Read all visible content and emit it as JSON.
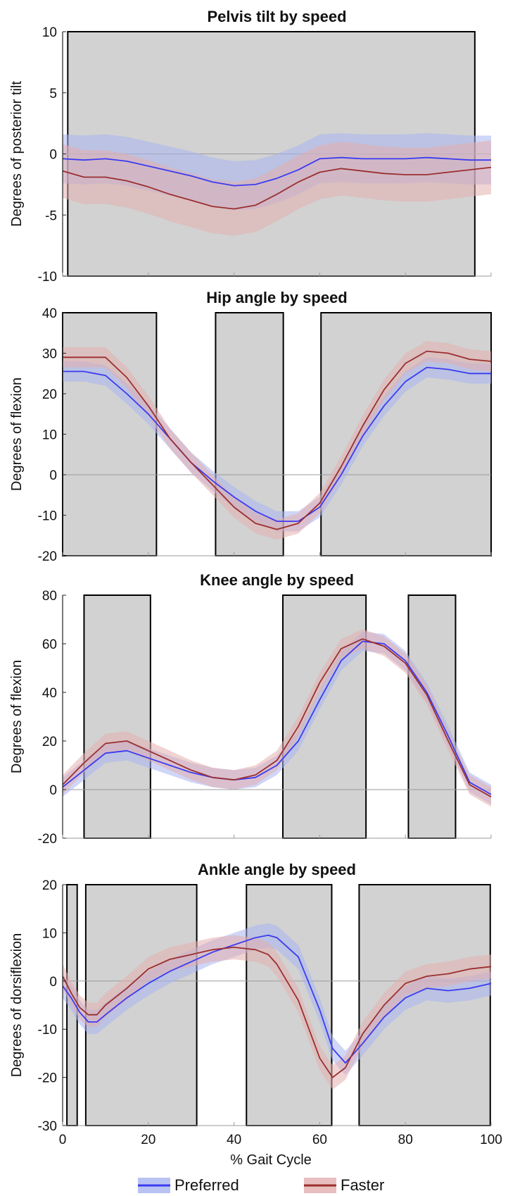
{
  "legend": {
    "items": [
      {
        "label": "Preferred",
        "color": "#3b3bf0",
        "band": "#a8b4f0"
      },
      {
        "label": "Faster",
        "color": "#9b2f2f",
        "band": "#e3aeae"
      }
    ]
  },
  "xaxis": {
    "label": "% Gait Cycle",
    "ticks": [
      "0",
      "20",
      "40",
      "60",
      "80",
      "100"
    ],
    "range": [
      0,
      100
    ]
  },
  "chart_data": [
    {
      "type": "line",
      "title": "Pelvis tilt by speed",
      "ylabel": "Degrees of posterior tilt",
      "ylim": [
        -10,
        10
      ],
      "yticks": [
        10,
        5,
        0,
        -5,
        -10
      ],
      "shaded_regions": [
        [
          1.2,
          96.2
        ]
      ],
      "x": [
        0,
        5,
        10,
        15,
        20,
        25,
        30,
        35,
        40,
        45,
        50,
        55,
        60,
        65,
        70,
        75,
        80,
        85,
        90,
        95,
        100
      ],
      "series": [
        {
          "name": "Preferred",
          "values": [
            -0.4,
            -0.5,
            -0.4,
            -0.6,
            -1.0,
            -1.4,
            -1.8,
            -2.3,
            -2.6,
            -2.5,
            -2.0,
            -1.3,
            -0.4,
            -0.3,
            -0.4,
            -0.4,
            -0.4,
            -0.3,
            -0.4,
            -0.5,
            -0.5
          ],
          "sd": [
            2.0,
            2.0,
            2.0,
            2.0,
            2.0,
            2.0,
            2.0,
            2.0,
            2.0,
            2.0,
            2.0,
            2.0,
            2.0,
            2.0,
            2.0,
            2.0,
            2.0,
            2.0,
            2.0,
            2.0,
            2.0
          ]
        },
        {
          "name": "Faster",
          "values": [
            -1.4,
            -1.9,
            -1.9,
            -2.2,
            -2.7,
            -3.3,
            -3.8,
            -4.3,
            -4.5,
            -4.2,
            -3.3,
            -2.3,
            -1.5,
            -1.2,
            -1.4,
            -1.6,
            -1.7,
            -1.7,
            -1.5,
            -1.3,
            -1.1
          ],
          "sd": [
            2.2,
            2.2,
            2.2,
            2.2,
            2.2,
            2.2,
            2.2,
            2.2,
            2.2,
            2.2,
            2.2,
            2.2,
            2.2,
            2.2,
            2.2,
            2.2,
            2.2,
            2.2,
            2.2,
            2.2,
            2.2
          ]
        }
      ]
    },
    {
      "type": "line",
      "title": "Hip angle by speed",
      "ylabel": "Degrees of flexion",
      "ylim": [
        -20,
        40
      ],
      "yticks": [
        40,
        30,
        20,
        10,
        0,
        -10,
        -20
      ],
      "shaded_regions": [
        [
          0,
          21.9
        ],
        [
          35.7,
          51.5
        ],
        [
          60.3,
          100
        ]
      ],
      "x": [
        0,
        5,
        10,
        15,
        20,
        25,
        30,
        35,
        40,
        45,
        50,
        55,
        60,
        65,
        70,
        75,
        80,
        85,
        90,
        95,
        100
      ],
      "series": [
        {
          "name": "Preferred",
          "values": [
            25.5,
            25.5,
            24.5,
            20,
            15,
            9,
            3,
            -1.5,
            -5.5,
            -9,
            -11.5,
            -11.5,
            -8,
            0,
            9.5,
            17,
            23,
            26.5,
            26,
            25,
            25
          ],
          "sd": [
            2.5,
            2.5,
            2.5,
            2.5,
            2.5,
            2.5,
            2.5,
            2.5,
            2.5,
            2.5,
            2.5,
            2.5,
            2.5,
            2.5,
            2.5,
            2.5,
            2.5,
            2.5,
            2.5,
            2.5,
            2.5
          ]
        },
        {
          "name": "Faster",
          "values": [
            29,
            29,
            29,
            24,
            17,
            9,
            3,
            -2.5,
            -8,
            -12,
            -13.5,
            -12,
            -7,
            2,
            12,
            21,
            27.5,
            30.5,
            30,
            28.5,
            28
          ],
          "sd": [
            2.5,
            2.5,
            2.5,
            2.5,
            2.5,
            2.5,
            2.5,
            2.5,
            2.5,
            2.5,
            2.5,
            2.5,
            2.5,
            2.5,
            2.5,
            2.5,
            2.5,
            2.5,
            2.5,
            2.5,
            2.5
          ]
        }
      ]
    },
    {
      "type": "line",
      "title": "Knee angle by speed",
      "ylabel": "Degrees of flexion",
      "ylim": [
        -20,
        80
      ],
      "yticks": [
        80,
        60,
        40,
        20,
        0,
        -20
      ],
      "shaded_regions": [
        [
          5,
          20.5
        ],
        [
          51.4,
          70.8
        ],
        [
          80.7,
          91.7
        ]
      ],
      "x": [
        0,
        5,
        10,
        15,
        20,
        25,
        30,
        35,
        40,
        45,
        50,
        55,
        60,
        65,
        70,
        75,
        80,
        85,
        90,
        95,
        100
      ],
      "series": [
        {
          "name": "Preferred",
          "values": [
            1,
            8,
            15,
            16,
            13,
            10,
            7,
            5,
            4,
            5,
            10,
            20,
            37,
            53,
            61,
            60,
            53,
            40,
            22,
            3,
            -2
          ],
          "sd": [
            4,
            4,
            4,
            4,
            4,
            4,
            4,
            4,
            4,
            4,
            4,
            4,
            4,
            4,
            4,
            4,
            4,
            4,
            4,
            4,
            4
          ]
        },
        {
          "name": "Faster",
          "values": [
            2,
            11,
            19,
            20,
            16,
            12,
            8,
            5,
            4,
            6,
            12,
            26,
            44,
            58,
            62,
            59,
            52,
            39,
            20,
            2,
            -3
          ],
          "sd": [
            4,
            4,
            4,
            4,
            4,
            4,
            4,
            4,
            4,
            4,
            4,
            4,
            4,
            4,
            4,
            4,
            4,
            4,
            4,
            4,
            4
          ]
        }
      ]
    },
    {
      "type": "line",
      "title": "Ankle angle by speed",
      "ylabel": "Degrees of dorsiflexion",
      "ylim": [
        -30,
        20
      ],
      "yticks": [
        20,
        10,
        0,
        -10,
        -20,
        -30
      ],
      "shaded_regions": [
        [
          1,
          3.4
        ],
        [
          5.4,
          31.3
        ],
        [
          42.9,
          62.8
        ],
        [
          69.2,
          99.8
        ]
      ],
      "x": [
        0,
        2,
        4,
        6,
        8,
        10,
        15,
        20,
        25,
        30,
        35,
        40,
        45,
        48,
        50,
        55,
        60,
        63,
        66,
        70,
        75,
        80,
        85,
        90,
        95,
        100
      ],
      "series": [
        {
          "name": "Preferred",
          "values": [
            -1,
            -3.5,
            -6.5,
            -8.5,
            -8.5,
            -7,
            -3.5,
            -0.5,
            2,
            4,
            6,
            7.5,
            9,
            9.5,
            9,
            5,
            -6,
            -14,
            -17,
            -13,
            -7.5,
            -3.5,
            -1.5,
            -2,
            -1.5,
            -0.5
          ],
          "sd": [
            2.5,
            2.5,
            2.5,
            2.5,
            2.5,
            2.5,
            2.5,
            2.5,
            2.5,
            2.5,
            2.5,
            2.5,
            2.5,
            2.5,
            2.5,
            2.5,
            2.5,
            2.5,
            2.5,
            2.5,
            2.5,
            2.5,
            2.5,
            2.5,
            2.5,
            2.5
          ]
        },
        {
          "name": "Faster",
          "values": [
            1,
            -2.5,
            -5.5,
            -7,
            -7,
            -5,
            -1.5,
            2.5,
            4.5,
            5.5,
            6.5,
            7,
            6.5,
            5.5,
            3.5,
            -4,
            -16,
            -20,
            -18,
            -11,
            -5,
            -0.5,
            1,
            1.5,
            2.5,
            3
          ],
          "sd": [
            2.5,
            2.5,
            2.5,
            2.5,
            2.5,
            2.5,
            2.5,
            2.5,
            2.5,
            2.5,
            2.5,
            2.5,
            2.5,
            2.5,
            2.5,
            2.5,
            2.5,
            2.5,
            2.5,
            2.5,
            2.5,
            2.5,
            2.5,
            2.5,
            2.5,
            2.5
          ]
        }
      ]
    }
  ]
}
